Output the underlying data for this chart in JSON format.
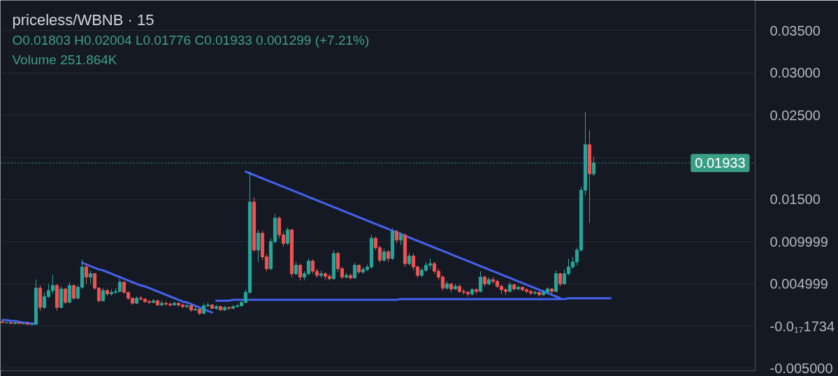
{
  "chart_data": {
    "type": "candlestick",
    "title": "priceless/WBNB · 15",
    "annotations": [
      "O0.01803 H0.02004 L0.01776 C0.01933 0.001299 (+7.21%)",
      "Volume 251.864K"
    ],
    "categories": [
      null,
      null,
      null,
      null,
      null,
      null,
      null,
      null,
      null,
      null,
      null,
      null,
      null,
      null,
      null,
      null,
      null,
      null,
      null,
      null,
      null,
      null,
      null,
      null,
      null,
      null,
      null,
      null,
      null,
      null,
      null,
      null,
      null,
      null,
      null,
      null,
      null,
      null,
      null,
      null,
      null,
      null,
      null,
      null,
      null,
      null,
      null,
      null,
      null,
      null,
      null,
      null,
      null,
      null,
      null,
      null,
      null,
      null,
      null,
      null,
      null,
      null,
      null,
      null,
      null,
      null,
      null,
      null,
      null,
      null,
      null,
      null,
      null,
      null,
      null,
      null,
      null,
      null,
      null,
      null,
      null,
      null,
      null,
      null,
      null,
      null,
      null,
      null,
      null,
      null,
      null,
      null,
      null,
      null,
      null,
      null,
      null,
      null,
      null,
      null,
      null,
      null,
      null,
      null,
      null,
      null,
      null,
      null,
      null,
      null,
      null,
      null,
      null,
      null,
      null,
      null,
      null,
      null,
      null,
      null,
      null,
      null,
      null,
      null,
      null,
      null,
      null,
      null,
      null,
      null,
      null,
      null,
      null,
      null,
      null,
      null,
      null,
      null,
      null,
      null,
      null,
      null,
      null,
      null,
      null,
      null,
      null,
      null,
      null,
      null,
      null,
      null,
      null,
      null,
      null,
      null,
      null,
      null,
      null,
      null,
      null,
      null,
      null,
      null,
      null,
      null,
      null,
      null,
      null,
      null,
      null,
      null,
      null,
      null,
      null,
      null,
      null,
      null,
      null,
      null
    ],
    "ohlc": [
      [
        0.0005,
        0.0006,
        0.0004,
        0.0004
      ],
      [
        0.0004,
        0.0005,
        0.0003,
        0.0004
      ],
      [
        0.0004,
        0.0005,
        0.0003,
        0.0003
      ],
      [
        0.0003,
        0.0004,
        0.0002,
        0.0004
      ],
      [
        0.0004,
        0.0005,
        0.0003,
        0.0003
      ],
      [
        0.0003,
        0.0004,
        0.0002,
        0.0003
      ],
      [
        0.0003,
        0.0004,
        0.0002,
        0.0002
      ],
      [
        0.0002,
        0.0003,
        0.0001,
        0.0002
      ],
      [
        0.0002,
        0.0055,
        0.0002,
        0.0045
      ],
      [
        0.0045,
        0.0048,
        0.0018,
        0.0022
      ],
      [
        0.0022,
        0.004,
        0.002,
        0.0035
      ],
      [
        0.0035,
        0.005,
        0.0033,
        0.0042
      ],
      [
        0.0042,
        0.0061,
        0.0038,
        0.0048
      ],
      [
        0.0048,
        0.005,
        0.0018,
        0.0022
      ],
      [
        0.0022,
        0.0047,
        0.0021,
        0.0044
      ],
      [
        0.0044,
        0.0045,
        0.0026,
        0.0028
      ],
      [
        0.0028,
        0.0052,
        0.0027,
        0.0048
      ],
      [
        0.0048,
        0.0049,
        0.0031,
        0.0033
      ],
      [
        0.0033,
        0.0048,
        0.0032,
        0.0046
      ],
      [
        0.0046,
        0.0079,
        0.0044,
        0.007
      ],
      [
        0.007,
        0.0074,
        0.005,
        0.0058
      ],
      [
        0.0058,
        0.0066,
        0.005,
        0.0062
      ],
      [
        0.0062,
        0.0063,
        0.0043,
        0.0045
      ],
      [
        0.0045,
        0.0046,
        0.0028,
        0.003
      ],
      [
        0.003,
        0.0045,
        0.0029,
        0.0042
      ],
      [
        0.0042,
        0.0044,
        0.0036,
        0.0038
      ],
      [
        0.0038,
        0.0044,
        0.0036,
        0.004
      ],
      [
        0.004,
        0.0045,
        0.0038,
        0.0041
      ],
      [
        0.0041,
        0.0056,
        0.004,
        0.0052
      ],
      [
        0.0052,
        0.0053,
        0.0038,
        0.004
      ],
      [
        0.004,
        0.0041,
        0.0031,
        0.0033
      ],
      [
        0.0033,
        0.0034,
        0.0025,
        0.0027
      ],
      [
        0.0027,
        0.0035,
        0.0026,
        0.0033
      ],
      [
        0.0033,
        0.0036,
        0.003,
        0.0032
      ],
      [
        0.0032,
        0.0033,
        0.0027,
        0.0029
      ],
      [
        0.0029,
        0.0031,
        0.0026,
        0.0028
      ],
      [
        0.0028,
        0.0032,
        0.0027,
        0.003
      ],
      [
        0.003,
        0.0031,
        0.0024,
        0.0025
      ],
      [
        0.0025,
        0.003,
        0.0024,
        0.0027
      ],
      [
        0.0027,
        0.0029,
        0.0024,
        0.0026
      ],
      [
        0.0026,
        0.0028,
        0.0023,
        0.0025
      ],
      [
        0.0025,
        0.0029,
        0.0024,
        0.0027
      ],
      [
        0.0027,
        0.0028,
        0.0023,
        0.0025
      ],
      [
        0.0025,
        0.0027,
        0.0021,
        0.0023
      ],
      [
        0.0023,
        0.0026,
        0.0021,
        0.0024
      ],
      [
        0.0024,
        0.0025,
        0.0017,
        0.0019
      ],
      [
        0.0019,
        0.0023,
        0.0018,
        0.002
      ],
      [
        0.002,
        0.0021,
        0.0013,
        0.0015
      ],
      [
        0.0015,
        0.0027,
        0.0014,
        0.0024
      ],
      [
        0.0024,
        0.0028,
        0.0022,
        0.0025
      ],
      [
        0.0025,
        0.0026,
        0.002,
        0.0021
      ],
      [
        0.0021,
        0.0025,
        0.0019,
        0.0023
      ],
      [
        0.0023,
        0.0024,
        0.0018,
        0.0019
      ],
      [
        0.0019,
        0.0024,
        0.0018,
        0.0022
      ],
      [
        0.0022,
        0.0023,
        0.0019,
        0.0021
      ],
      [
        0.0021,
        0.0025,
        0.002,
        0.0023
      ],
      [
        0.0023,
        0.0026,
        0.0022,
        0.0024
      ],
      [
        0.0024,
        0.003,
        0.0023,
        0.0028
      ],
      [
        0.0028,
        0.0043,
        0.0027,
        0.004
      ],
      [
        0.004,
        0.0183,
        0.0038,
        0.0147
      ],
      [
        0.0147,
        0.0152,
        0.0088,
        0.009
      ],
      [
        0.009,
        0.0114,
        0.0076,
        0.011
      ],
      [
        0.011,
        0.0113,
        0.0078,
        0.0082
      ],
      [
        0.0082,
        0.0085,
        0.0065,
        0.0068
      ],
      [
        0.0068,
        0.0104,
        0.0066,
        0.01
      ],
      [
        0.01,
        0.0133,
        0.0098,
        0.0128
      ],
      [
        0.0128,
        0.013,
        0.0104,
        0.0108
      ],
      [
        0.0108,
        0.0112,
        0.0094,
        0.0098
      ],
      [
        0.0098,
        0.0117,
        0.0096,
        0.0114
      ],
      [
        0.0114,
        0.0115,
        0.0058,
        0.0062
      ],
      [
        0.0062,
        0.0076,
        0.006,
        0.0072
      ],
      [
        0.0072,
        0.0074,
        0.0054,
        0.0058
      ],
      [
        0.0058,
        0.0065,
        0.0054,
        0.0062
      ],
      [
        0.0062,
        0.008,
        0.006,
        0.0077
      ],
      [
        0.0077,
        0.0079,
        0.0062,
        0.0065
      ],
      [
        0.0065,
        0.0068,
        0.0057,
        0.006
      ],
      [
        0.006,
        0.0066,
        0.0057,
        0.0062
      ],
      [
        0.0062,
        0.0064,
        0.0055,
        0.0059
      ],
      [
        0.0059,
        0.0062,
        0.0054,
        0.0056
      ],
      [
        0.0056,
        0.009,
        0.0055,
        0.0086
      ],
      [
        0.0086,
        0.0088,
        0.0064,
        0.0068
      ],
      [
        0.0068,
        0.007,
        0.0056,
        0.0058
      ],
      [
        0.0058,
        0.0063,
        0.0056,
        0.006
      ],
      [
        0.006,
        0.0062,
        0.0055,
        0.0057
      ],
      [
        0.0057,
        0.0075,
        0.0056,
        0.0072
      ],
      [
        0.0072,
        0.0073,
        0.0062,
        0.0064
      ],
      [
        0.0064,
        0.007,
        0.0062,
        0.0067
      ],
      [
        0.0067,
        0.0073,
        0.0065,
        0.007
      ],
      [
        0.007,
        0.0108,
        0.0068,
        0.0104
      ],
      [
        0.0104,
        0.0106,
        0.009,
        0.0093
      ],
      [
        0.0093,
        0.0095,
        0.0075,
        0.0078
      ],
      [
        0.0078,
        0.0092,
        0.0076,
        0.0088
      ],
      [
        0.0088,
        0.009,
        0.0076,
        0.008
      ],
      [
        0.008,
        0.0116,
        0.0078,
        0.0112
      ],
      [
        0.0112,
        0.0114,
        0.0098,
        0.0102
      ],
      [
        0.0102,
        0.0111,
        0.0096,
        0.0108
      ],
      [
        0.0108,
        0.011,
        0.007,
        0.0074
      ],
      [
        0.0074,
        0.0087,
        0.0072,
        0.0083
      ],
      [
        0.0083,
        0.0086,
        0.0066,
        0.007
      ],
      [
        0.007,
        0.0072,
        0.0057,
        0.006
      ],
      [
        0.006,
        0.0069,
        0.0058,
        0.0066
      ],
      [
        0.0066,
        0.0076,
        0.0064,
        0.0072
      ],
      [
        0.0072,
        0.008,
        0.0068,
        0.0074
      ],
      [
        0.0074,
        0.0076,
        0.0062,
        0.0065
      ],
      [
        0.0065,
        0.0068,
        0.0055,
        0.0058
      ],
      [
        0.0058,
        0.006,
        0.0042,
        0.0045
      ],
      [
        0.0045,
        0.0053,
        0.0043,
        0.005
      ],
      [
        0.005,
        0.0051,
        0.004,
        0.0044
      ],
      [
        0.0044,
        0.005,
        0.0043,
        0.0047
      ],
      [
        0.0047,
        0.0049,
        0.0039,
        0.0041
      ],
      [
        0.0041,
        0.0044,
        0.0037,
        0.004
      ],
      [
        0.004,
        0.0042,
        0.0035,
        0.0038
      ],
      [
        0.0038,
        0.0045,
        0.0036,
        0.0043
      ],
      [
        0.0043,
        0.0045,
        0.0038,
        0.0041
      ],
      [
        0.0041,
        0.0065,
        0.004,
        0.0058
      ],
      [
        0.0058,
        0.006,
        0.0047,
        0.005
      ],
      [
        0.005,
        0.0058,
        0.0048,
        0.0055
      ],
      [
        0.0055,
        0.0058,
        0.005,
        0.0053
      ],
      [
        0.0053,
        0.0055,
        0.0045,
        0.0047
      ],
      [
        0.0047,
        0.0049,
        0.0038,
        0.0043
      ],
      [
        0.0043,
        0.0045,
        0.0037,
        0.0041
      ],
      [
        0.0041,
        0.0052,
        0.004,
        0.0049
      ],
      [
        0.0049,
        0.005,
        0.0042,
        0.0044
      ],
      [
        0.0044,
        0.0048,
        0.0042,
        0.0046
      ],
      [
        0.0046,
        0.0047,
        0.0041,
        0.0043
      ],
      [
        0.0043,
        0.0045,
        0.0039,
        0.0041
      ],
      [
        0.0041,
        0.0043,
        0.0037,
        0.0039
      ],
      [
        0.0039,
        0.0042,
        0.0037,
        0.004
      ],
      [
        0.004,
        0.0041,
        0.0035,
        0.0037
      ],
      [
        0.0037,
        0.0043,
        0.0036,
        0.004
      ],
      [
        0.004,
        0.0046,
        0.0039,
        0.0044
      ],
      [
        0.0044,
        0.0045,
        0.0038,
        0.0041
      ],
      [
        0.0041,
        0.0066,
        0.004,
        0.0062
      ],
      [
        0.0062,
        0.0063,
        0.0047,
        0.005
      ],
      [
        0.005,
        0.0067,
        0.0049,
        0.0062
      ],
      [
        0.0062,
        0.008,
        0.006,
        0.007
      ],
      [
        0.007,
        0.0082,
        0.0068,
        0.0076
      ],
      [
        0.0076,
        0.0093,
        0.0072,
        0.009
      ],
      [
        0.009,
        0.0165,
        0.0088,
        0.0161
      ],
      [
        0.0161,
        0.0254,
        0.0155,
        0.0215
      ],
      [
        0.0215,
        0.0232,
        0.0122,
        0.01803
      ],
      [
        0.01803,
        0.02004,
        0.01776,
        0.01933
      ],
      null,
      null,
      null,
      null,
      null,
      null,
      null,
      null,
      null,
      null,
      null,
      null,
      null,
      null,
      null,
      null,
      null,
      null,
      null,
      null,
      null,
      null,
      null,
      null,
      null,
      null,
      null,
      null,
      null,
      null,
      null,
      null,
      null,
      null,
      null,
      null,
      null,
      null
    ],
    "colors": [
      "#ef5350",
      "#26a69a",
      "#ef5350",
      "#26a69a",
      "#ef5350",
      "#26a69a",
      "#ef5350",
      "#26a69a",
      "#26a69a",
      "#ef5350",
      "#26a69a",
      "#26a69a",
      "#26a69a",
      "#ef5350",
      "#26a69a",
      "#ef5350",
      "#26a69a",
      "#ef5350",
      "#26a69a",
      "#26a69a",
      "#ef5350",
      "#26a69a",
      "#ef5350",
      "#ef5350",
      "#26a69a",
      "#ef5350",
      "#26a69a",
      "#26a69a",
      "#26a69a",
      "#ef5350",
      "#ef5350",
      "#ef5350",
      "#26a69a",
      "#ef5350",
      "#ef5350",
      "#ef5350",
      "#26a69a",
      "#ef5350",
      "#26a69a",
      "#ef5350",
      "#ef5350",
      "#26a69a",
      "#ef5350",
      "#ef5350",
      "#26a69a",
      "#ef5350",
      "#26a69a",
      "#ef5350",
      "#26a69a",
      "#26a69a",
      "#ef5350",
      "#26a69a",
      "#ef5350",
      "#26a69a",
      "#ef5350",
      "#26a69a",
      "#26a69a",
      "#26a69a",
      "#26a69a",
      "#26a69a",
      "#ef5350",
      "#26a69a",
      "#ef5350",
      "#ef5350",
      "#26a69a",
      "#26a69a",
      "#ef5350",
      "#ef5350",
      "#26a69a",
      "#ef5350",
      "#26a69a",
      "#ef5350",
      "#26a69a",
      "#26a69a",
      "#ef5350",
      "#ef5350",
      "#26a69a",
      "#ef5350",
      "#ef5350",
      "#26a69a",
      "#ef5350",
      "#ef5350",
      "#26a69a",
      "#ef5350",
      "#26a69a",
      "#ef5350",
      "#26a69a",
      "#26a69a",
      "#26a69a",
      "#ef5350",
      "#ef5350",
      "#26a69a",
      "#ef5350",
      "#26a69a",
      "#ef5350",
      "#26a69a",
      "#ef5350",
      "#26a69a",
      "#ef5350",
      "#ef5350",
      "#26a69a",
      "#26a69a",
      "#26a69a",
      "#ef5350",
      "#ef5350",
      "#ef5350",
      "#26a69a",
      "#ef5350",
      "#26a69a",
      "#ef5350",
      "#ef5350",
      "#ef5350",
      "#26a69a",
      "#ef5350",
      "#26a69a",
      "#ef5350",
      "#26a69a",
      "#ef5350",
      "#ef5350",
      "#ef5350",
      "#ef5350",
      "#26a69a",
      "#ef5350",
      "#26a69a",
      "#ef5350",
      "#ef5350",
      "#ef5350",
      "#26a69a",
      "#ef5350",
      "#26a69a",
      "#26a69a",
      "#ef5350",
      "#26a69a",
      "#ef5350",
      "#26a69a",
      "#26a69a",
      "#26a69a",
      "#26a69a",
      "#26a69a",
      "#26a69a",
      "#ef5350",
      "#26a69a",
      null,
      null,
      null,
      null,
      null,
      null,
      null,
      null,
      null,
      null,
      null,
      null,
      null,
      null,
      null,
      null,
      null,
      null,
      null,
      null,
      null,
      null,
      null,
      null,
      null,
      null,
      null,
      null,
      null,
      null,
      null,
      null,
      null,
      null,
      null,
      null,
      null,
      null
    ],
    "series": [
      {
        "type": "line",
        "color": "#4462ec",
        "values": [
          0.0007,
          0.0007,
          0.0006,
          0.0006,
          0.0005,
          0.0004,
          0.0004,
          0.0003,
          0.0003,
          null,
          null,
          null,
          null,
          null,
          null,
          null,
          null,
          null,
          null,
          null,
          null,
          null,
          null,
          null,
          null,
          null,
          null,
          null,
          null,
          null,
          null,
          null,
          null,
          null,
          null,
          null,
          null,
          null,
          null,
          null,
          null,
          null,
          null,
          null,
          null,
          null,
          null,
          null,
          null,
          null,
          null,
          null,
          null,
          null,
          null,
          null,
          null,
          null,
          null,
          null,
          null,
          null,
          null,
          null,
          null,
          null,
          null,
          null,
          null,
          null,
          null,
          null,
          null,
          null,
          null,
          null,
          null,
          null,
          null,
          null,
          null,
          null,
          null,
          null,
          null,
          null,
          null,
          null,
          null,
          null,
          null,
          null,
          null,
          null,
          null,
          null,
          null,
          null,
          null,
          null,
          null,
          null,
          null,
          null,
          null,
          null,
          null,
          null,
          null,
          null,
          null,
          null,
          null,
          null,
          null,
          null,
          null,
          null,
          null,
          null,
          null,
          null,
          null,
          null,
          null,
          null,
          null,
          null,
          null,
          null,
          null,
          null,
          null,
          null,
          null,
          null,
          null,
          null,
          null,
          null,
          null,
          null,
          null,
          null,
          null,
          null,
          null,
          null,
          null,
          null,
          null,
          null,
          null,
          null,
          null,
          null,
          null,
          null,
          null,
          null,
          null,
          null,
          null,
          null,
          null,
          null,
          null,
          null,
          null,
          null,
          null,
          null,
          null,
          null,
          null,
          null,
          null,
          null,
          null,
          null
        ]
      },
      {
        "type": "line",
        "color": "#4462ec",
        "values": [
          null,
          null,
          null,
          null,
          null,
          null,
          null,
          null,
          null,
          null,
          null,
          null,
          null,
          null,
          null,
          null,
          null,
          null,
          null,
          0.0075,
          0.0073,
          0.0071,
          0.0069,
          0.0067,
          0.0066,
          0.0064,
          0.0062,
          0.006,
          0.0058,
          0.0056,
          0.0054,
          0.0052,
          0.005,
          0.0048,
          0.0047,
          0.0045,
          0.0043,
          0.0041,
          0.0039,
          0.0037,
          0.0035,
          0.0033,
          0.0031,
          0.0029,
          0.0028,
          0.0026,
          0.0024,
          0.0022,
          0.002,
          0.0018,
          0.0016,
          null,
          null,
          null,
          null,
          null,
          null,
          null,
          null,
          null,
          null,
          null,
          null,
          null,
          null,
          null,
          null,
          null,
          null,
          null,
          null,
          null,
          null,
          null,
          null,
          null,
          null,
          null,
          null,
          null,
          null,
          null,
          null,
          null,
          null,
          null,
          null,
          null,
          null,
          null,
          null,
          null,
          null,
          null,
          null,
          null,
          null,
          null,
          null,
          null,
          null,
          null,
          null,
          null,
          null,
          null,
          null,
          null,
          null,
          null,
          null,
          null,
          null,
          null,
          null,
          null,
          null,
          null,
          null,
          null,
          null,
          null,
          null,
          null,
          null,
          null,
          null,
          null,
          null,
          null,
          null,
          null,
          null,
          null,
          null,
          null,
          null,
          null,
          null,
          null,
          null,
          null,
          null,
          null,
          null,
          null,
          null,
          null,
          null,
          null,
          null,
          null,
          null,
          null,
          null,
          null,
          null,
          null,
          null,
          null,
          null,
          null,
          null,
          null,
          null,
          null,
          null,
          null,
          null,
          null,
          null,
          null,
          null,
          null,
          null,
          null,
          null,
          null,
          null,
          null
        ]
      },
      {
        "type": "line",
        "color": "#4462ec",
        "values": [
          null,
          null,
          null,
          null,
          null,
          null,
          null,
          null,
          null,
          null,
          null,
          null,
          null,
          null,
          null,
          null,
          null,
          null,
          null,
          null,
          null,
          null,
          null,
          null,
          null,
          null,
          null,
          null,
          null,
          null,
          null,
          null,
          null,
          null,
          null,
          null,
          null,
          null,
          null,
          null,
          null,
          null,
          null,
          null,
          null,
          null,
          null,
          null,
          null,
          null,
          null,
          null,
          null,
          null,
          null,
          null,
          null,
          null,
          0.0183,
          0.0181,
          0.0179,
          0.0177,
          0.0175,
          0.0173,
          0.0171,
          0.0169,
          0.0167,
          0.0165,
          0.0163,
          0.0161,
          0.0159,
          0.0157,
          0.0155,
          0.0153,
          0.0151,
          0.0149,
          0.0147,
          0.0145,
          0.0143,
          0.0141,
          0.0139,
          0.0137,
          0.0135,
          0.0133,
          0.0131,
          0.0129,
          0.0127,
          0.0125,
          0.0123,
          0.0121,
          0.0119,
          0.0117,
          0.0115,
          0.0113,
          0.0111,
          0.0109,
          0.0107,
          0.0105,
          0.0103,
          0.0101,
          0.0099,
          0.0097,
          0.0095,
          0.0093,
          0.0091,
          0.0089,
          0.0087,
          0.0085,
          0.0083,
          0.0081,
          0.0079,
          0.0077,
          0.0075,
          0.0073,
          0.0071,
          0.0069,
          0.0067,
          0.0065,
          0.0063,
          0.0061,
          0.0059,
          0.0057,
          0.0055,
          0.0053,
          0.0051,
          0.0049,
          0.0047,
          0.0045,
          0.0043,
          0.0041,
          0.0039,
          0.0037,
          0.0035,
          0.0033,
          null,
          null,
          null,
          null,
          null,
          null,
          null,
          null,
          null,
          null,
          null,
          null,
          null,
          null,
          null,
          null,
          null,
          null,
          null,
          null,
          null,
          null,
          null,
          null,
          null,
          null,
          null,
          null,
          null,
          null,
          null,
          null,
          null,
          null,
          null,
          null,
          null,
          null,
          null,
          null,
          null,
          null,
          null,
          null,
          null,
          null
        ]
      },
      {
        "type": "line",
        "color": "#4462ec",
        "values": [
          null,
          null,
          null,
          null,
          null,
          null,
          null,
          null,
          null,
          null,
          null,
          null,
          null,
          null,
          null,
          null,
          null,
          null,
          null,
          null,
          null,
          null,
          null,
          null,
          null,
          null,
          null,
          null,
          null,
          null,
          null,
          null,
          null,
          null,
          null,
          null,
          null,
          null,
          null,
          null,
          null,
          null,
          null,
          null,
          null,
          null,
          null,
          null,
          null,
          null,
          null,
          0.003,
          0.003,
          0.003,
          0.003,
          0.0031,
          0.0031,
          0.0031,
          0.0031,
          0.0031,
          0.0031,
          0.0031,
          0.0031,
          0.0031,
          0.0031,
          0.0031,
          0.0031,
          0.0031,
          0.0031,
          0.0031,
          0.0031,
          0.0031,
          0.0031,
          0.0031,
          0.0031,
          0.0031,
          0.0031,
          0.0031,
          0.0031,
          0.0031,
          0.0031,
          0.0031,
          0.0031,
          0.0031,
          0.0031,
          0.0031,
          0.0031,
          0.0031,
          0.0031,
          0.0031,
          0.0031,
          0.0031,
          0.0031,
          0.0031,
          0.0031,
          0.0032,
          0.0032,
          0.0032,
          0.0032,
          0.0032,
          0.0032,
          0.0032,
          0.0032,
          0.0032,
          0.0032,
          0.0032,
          0.0032,
          0.0032,
          0.0032,
          0.0032,
          0.0032,
          0.0032,
          0.0032,
          0.0032,
          0.0032,
          0.0032,
          0.0032,
          0.0032,
          0.0032,
          0.0032,
          0.0032,
          0.0032,
          0.0032,
          0.0032,
          0.0032,
          0.0032,
          0.0032,
          0.0032,
          0.0032,
          0.0032,
          0.0032,
          0.0032,
          0.0032,
          0.0032,
          0.0032,
          0.0033,
          0.0033,
          0.0033,
          0.0033,
          0.0033,
          0.0033,
          0.0033,
          0.0033,
          0.0033,
          0.0033,
          0.0033,
          null,
          null,
          null,
          null,
          null,
          null,
          null,
          null,
          null,
          null,
          null,
          null,
          null,
          null,
          null,
          null,
          null,
          null,
          null,
          null,
          null,
          null,
          null,
          null,
          null,
          null,
          null,
          null,
          null,
          null,
          null,
          null,
          null,
          null
        ]
      }
    ],
    "ylim": [
      -0.0053,
      0.0386
    ],
    "yticks": [
      {
        "value": -0.005,
        "label": "-0.005000"
      },
      {
        "value": 0,
        "label": "-0.0₁₇1734"
      },
      0.004999,
      0.009999,
      {
        "value": 0.015,
        "label": "0.01500"
      },
      {
        "value": 0.02,
        "label": null
      },
      {
        "value": 0.025,
        "label": "0.02500"
      },
      {
        "value": 0.03,
        "label": "0.03000"
      },
      {
        "value": 0.035,
        "label": "0.03500"
      }
    ],
    "ref_lines": [
      {
        "axis": "y",
        "value": 0.01933,
        "label": "0.01933",
        "color": "#3a9e84",
        "line_style": "dotted"
      }
    ],
    "grid": "y",
    "tick_labels": "y"
  }
}
